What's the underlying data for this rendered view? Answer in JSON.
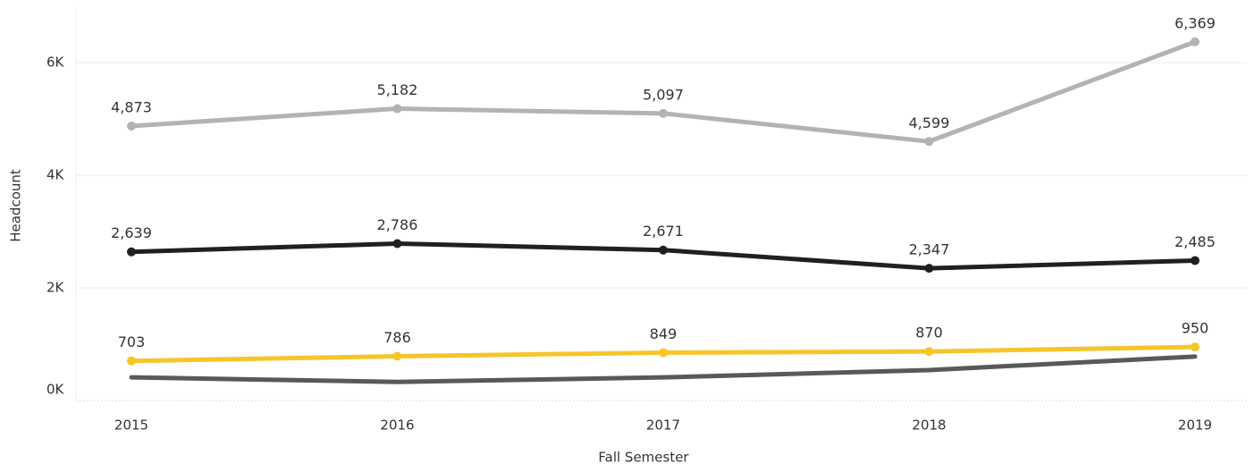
{
  "chart_data": {
    "type": "line",
    "x_label": "Fall Semester",
    "y_label": "Headcount",
    "categories": [
      "2015",
      "2016",
      "2017",
      "2018",
      "2019"
    ],
    "series": [
      {
        "color": "#b3b3b3",
        "values": [
          4873,
          5182,
          5097,
          4599,
          6369
        ],
        "value_labels": [
          "4,873",
          "5,182",
          "5,097",
          "4,599",
          "6,369"
        ]
      },
      {
        "color": "#231f20",
        "values": [
          2639,
          2786,
          2671,
          2347,
          2485
        ],
        "value_labels": [
          "2,639",
          "2,786",
          "2,671",
          "2,347",
          "2,485"
        ]
      },
      {
        "color": "#f6c52c",
        "values": [
          703,
          786,
          849,
          870,
          950
        ],
        "value_labels": [
          "703",
          "786",
          "849",
          "870",
          "950"
        ]
      },
      {
        "color": "#595959",
        "values": [
          410,
          330,
          410,
          540,
          780
        ]
      }
    ],
    "ylim": [
      0,
      7000
    ],
    "yticks": [
      {
        "value": 0,
        "label": "0K"
      },
      {
        "value": 2000,
        "label": "2K"
      },
      {
        "value": 4000,
        "label": "4K"
      },
      {
        "value": 6000,
        "label": "6K"
      }
    ],
    "grid": true
  }
}
